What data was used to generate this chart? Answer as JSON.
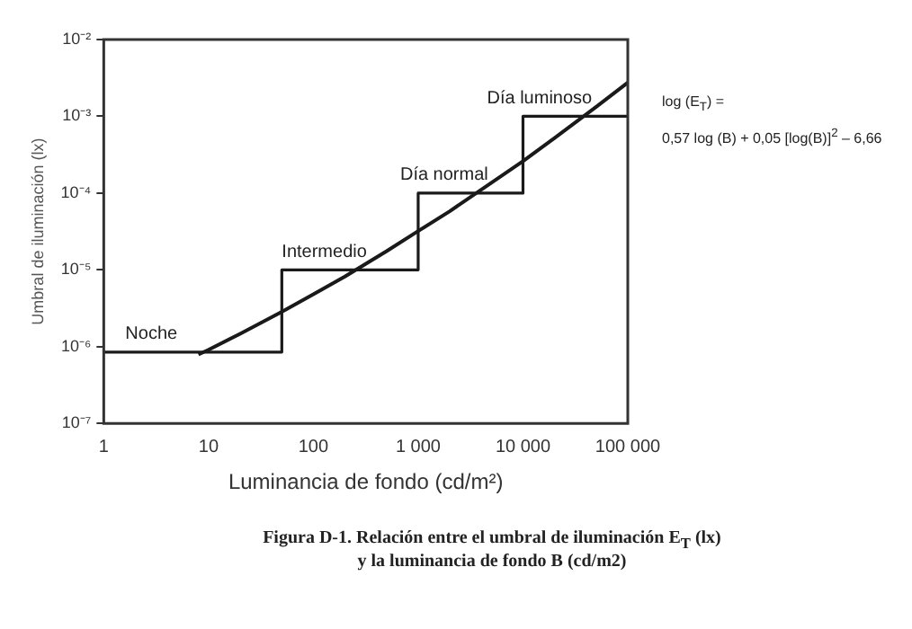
{
  "chart_data": {
    "type": "line",
    "xlabel": "Luminancia de fondo (cd/m²)",
    "ylabel": "Umbral de iluminación (lx)",
    "log": "xy",
    "grid": false,
    "legend": false,
    "marker": "none",
    "line_style": "solid",
    "xlim": [
      1,
      100000
    ],
    "xticks": [
      1,
      10,
      100,
      {
        "value": 1000,
        "label": "1 000"
      },
      {
        "value": 10000,
        "label": "10 000"
      },
      {
        "value": 100000,
        "label": "100 000"
      }
    ],
    "ylim": [
      1e-07,
      0.01
    ],
    "yticks": [
      {
        "value": 1e-07,
        "label": "10⁻⁷"
      },
      {
        "value": 1e-06,
        "label": "10⁻⁶"
      },
      {
        "value": 1e-05,
        "label": "10⁻⁵"
      },
      {
        "value": 0.0001,
        "label": "10⁻⁴"
      },
      {
        "value": 0.001,
        "label": "10⁻³"
      },
      {
        "value": 0.01,
        "label": "10⁻²"
      }
    ],
    "series": [
      {
        "type": "step",
        "color": "#1a1a1a",
        "x": [
          1,
          50,
          1000,
          10000,
          100000
        ],
        "values": [
          8.5e-07,
          1e-05,
          0.0001,
          0.001,
          0.001
        ]
      },
      {
        "type": "line",
        "color": "#1a1a1a",
        "x": [
          8,
          10,
          20,
          50,
          100,
          200,
          500,
          1000,
          2000,
          5000,
          10000,
          20000,
          50000,
          100000
        ],
        "values": [
          7.9e-07,
          9.1e-07,
          1.47e-06,
          2.84e-06,
          4.8e-06,
          8.2e-06,
          1.75e-05,
          3.2e-05,
          5.8e-05,
          0.000136,
          0.00026,
          0.00052,
          0.00133,
          0.00275
        ]
      }
    ],
    "annotations": [
      "Noche",
      "Intermedio",
      "Día normal",
      "Día luminoso",
      "log (E$_{T}$) =",
      "0,57 log (B) + 0,05 [log(B)]$^{2}$ – 6,66",
      "Figura D-1.    Relación entre el umbral de iluminación E$_{T}$ (lx)",
      "y la luminancia de fondo B (cd/m2)"
    ]
  }
}
